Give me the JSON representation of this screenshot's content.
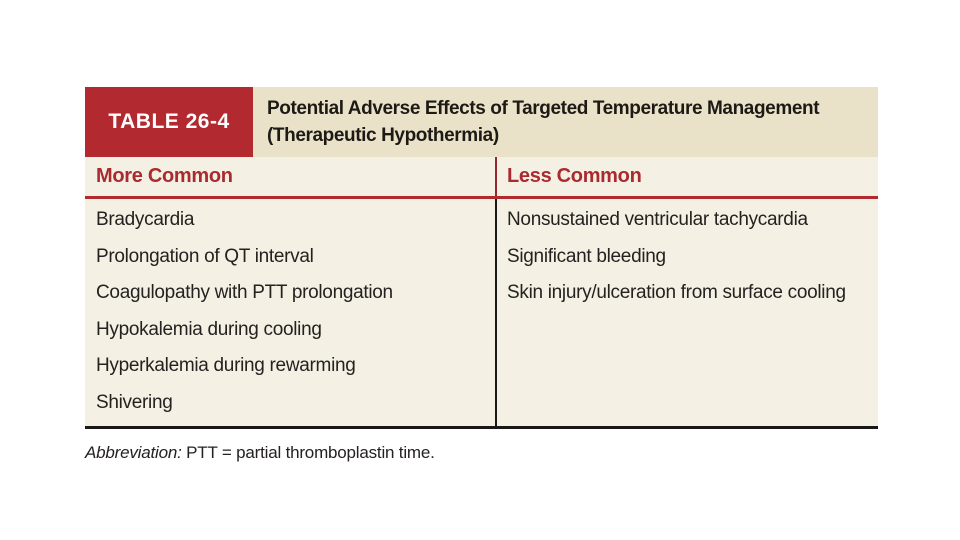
{
  "table": {
    "badge": "TABLE 26-4",
    "title_line1": "Potential Adverse Effects of Targeted Temperature Management",
    "title_line2": "(Therapeutic Hypothermia)",
    "columns": [
      {
        "header": "More Common",
        "items": [
          "Bradycardia",
          "Prolongation of QT interval",
          "Coagulopathy with PTT prolongation",
          "Hypokalemia during cooling",
          "Hyperkalemia during rewarming",
          "Shivering"
        ]
      },
      {
        "header": "Less Common",
        "items": [
          "Nonsustained ventricular tachycardia",
          "Significant bleeding",
          "Skin injury/ulceration from surface cooling"
        ]
      }
    ],
    "footnote": {
      "label": "Abbreviation:",
      "text": "PTT = partial thromboplastin time."
    }
  },
  "colors": {
    "accent_red": "#b2292f",
    "header_text_red": "#a92b30",
    "title_band_bg": "#eae2c8",
    "table_bg": "#f4f1e4",
    "body_text": "#242120",
    "divider_black": "#191917"
  }
}
